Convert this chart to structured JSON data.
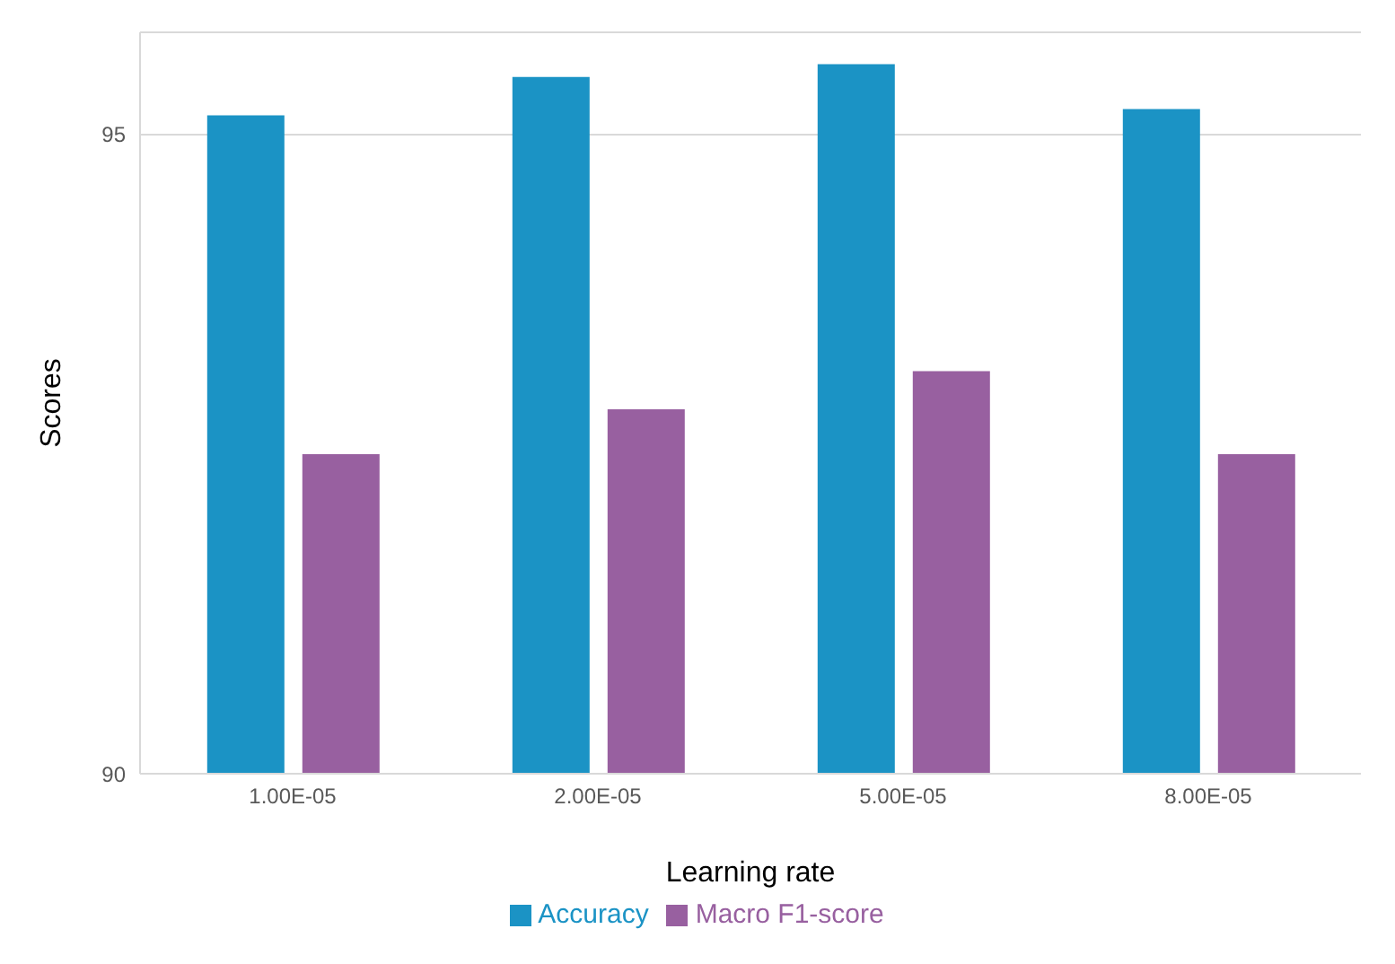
{
  "chart_data": {
    "type": "bar",
    "xlabel": "Learning rate",
    "ylabel": "Scores",
    "categories": [
      "1.00E-05",
      "2.00E-05",
      "5.00E-05",
      "8.00E-05"
    ],
    "series": [
      {
        "name": "Accuracy",
        "color": "#1b93c5",
        "values": [
          95.15,
          95.45,
          95.55,
          95.2
        ]
      },
      {
        "name": "Macro F1-score",
        "color": "#9860a0",
        "values": [
          92.5,
          92.85,
          93.15,
          92.5
        ]
      }
    ],
    "ylim": [
      90,
      95.8
    ],
    "yticks": [
      90,
      95
    ],
    "grid": "y",
    "legend": "bottom"
  }
}
